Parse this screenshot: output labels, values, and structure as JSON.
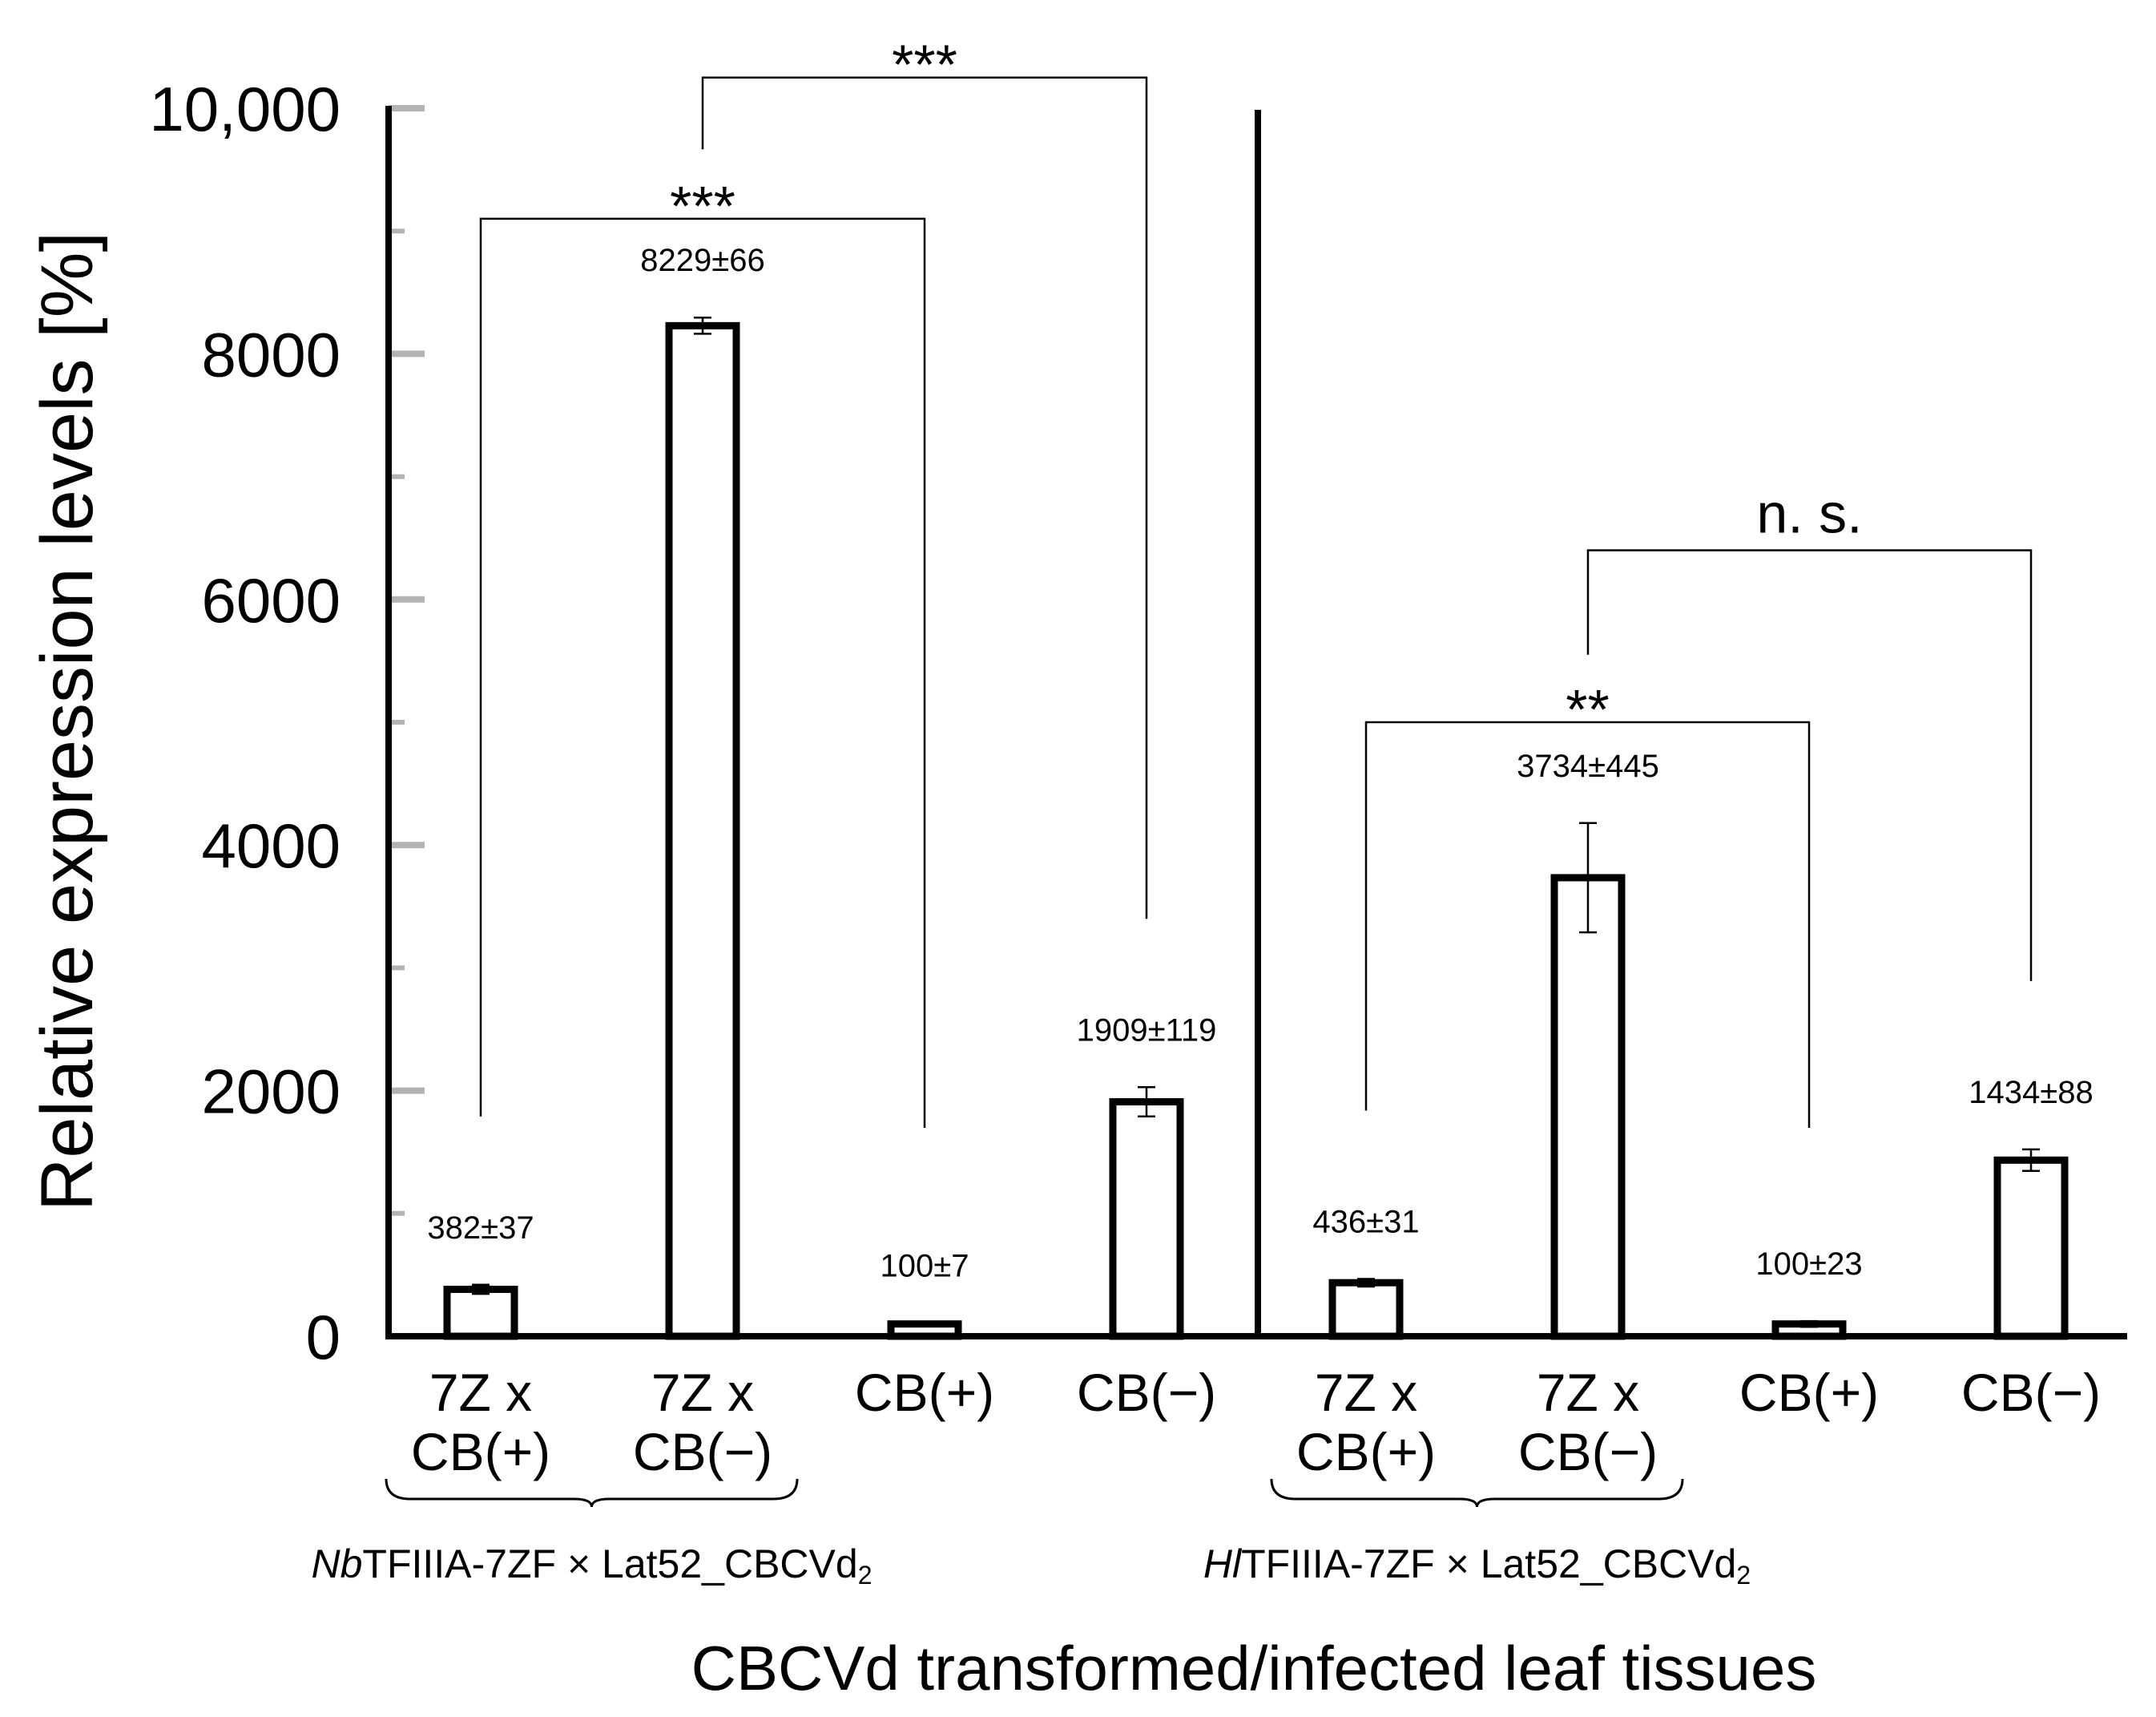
{
  "chart_data": {
    "type": "bar",
    "ylabel": "Relative expression levels [%]",
    "xlabel": "CBCVd transformed/infected leaf tissues",
    "ylim": [
      0,
      10000
    ],
    "yticks": [
      {
        "value": 0,
        "label": "0"
      },
      {
        "value": 2000,
        "label": "2000"
      },
      {
        "value": 4000,
        "label": "4000"
      },
      {
        "value": 6000,
        "label": "6000"
      },
      {
        "value": 8000,
        "label": "8000"
      },
      {
        "value": 10000,
        "label": "10,000"
      }
    ],
    "minor_ticks": [
      1000,
      3000,
      5000,
      7000,
      9000
    ],
    "categories": [
      {
        "lines": [
          "7Z x",
          "CB(+)"
        ],
        "value": 382,
        "error": 37,
        "label": "382±37"
      },
      {
        "lines": [
          "7Z x",
          "CB(−)"
        ],
        "value": 8229,
        "error": 66,
        "label": "8229±66"
      },
      {
        "lines": [
          "CB(+)"
        ],
        "value": 100,
        "error": 7,
        "label": "100±7"
      },
      {
        "lines": [
          "CB(−)"
        ],
        "value": 1909,
        "error": 119,
        "label": "1909±119"
      },
      {
        "lines": [
          "7Z x",
          "CB(+)"
        ],
        "value": 436,
        "error": 31,
        "label": "436±31"
      },
      {
        "lines": [
          "7Z x",
          "CB(−)"
        ],
        "value": 3734,
        "error": 445,
        "label": "3734±445"
      },
      {
        "lines": [
          "CB(+)"
        ],
        "value": 100,
        "error": 23,
        "label": "100±23"
      },
      {
        "lines": [
          "CB(−)"
        ],
        "value": 1434,
        "error": 88,
        "label": "1434±88"
      }
    ],
    "groups": [
      {
        "prefix": "Nb",
        "name": "TFIIIA-7ZF × Lat52_CBCVd",
        "subscript": "2",
        "bars": [
          0,
          1
        ]
      },
      {
        "prefix": "Hl",
        "name": "TFIIIA-7ZF × Lat52_CBCVd",
        "subscript": "2",
        "bars": [
          4,
          5
        ]
      }
    ],
    "significance": [
      {
        "from": 0,
        "to": 2,
        "label": "***",
        "level": 9100
      },
      {
        "from": 1,
        "to": 3,
        "label": "***",
        "level": 10250
      },
      {
        "from": 4,
        "to": 6,
        "label": "**",
        "level": 5000
      },
      {
        "from": 5,
        "to": 7,
        "label": "n. s.",
        "level": 6400
      }
    ]
  }
}
